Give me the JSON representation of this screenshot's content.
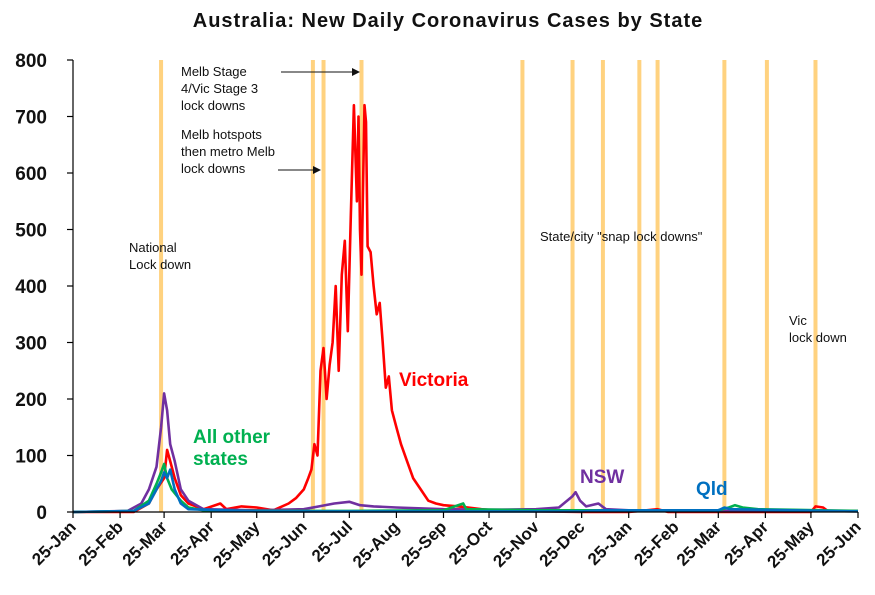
{
  "chart_data": {
    "type": "line",
    "title": "Australia: New Daily Coronavirus Cases by State",
    "x_tick_labels": [
      "25-Jan",
      "25-Feb",
      "25-Mar",
      "25-Apr",
      "25-May",
      "25-Jun",
      "25-Jul",
      "25-Aug",
      "25-Sep",
      "25-Oct",
      "25-Nov",
      "25-Dec",
      "25-Jan",
      "25-Feb",
      "25-Mar",
      "25-Apr",
      "25-May",
      "25-Jun"
    ],
    "x_tick_dates": [
      "2020-01-25",
      "2020-02-25",
      "2020-03-25",
      "2020-04-25",
      "2020-05-25",
      "2020-06-25",
      "2020-07-25",
      "2020-08-25",
      "2020-09-25",
      "2020-10-25",
      "2020-11-25",
      "2020-12-25",
      "2021-01-25",
      "2021-02-25",
      "2021-03-25",
      "2021-04-25",
      "2021-05-25",
      "2021-06-25"
    ],
    "xlim": [
      "2020-01-25",
      "2021-06-25"
    ],
    "ylim": [
      0,
      800
    ],
    "yticks": [
      0,
      100,
      200,
      300,
      400,
      500,
      600,
      700,
      800
    ],
    "grid": false,
    "lockdown_lines": {
      "color": "#FFD27F",
      "dates": [
        "2020-03-23",
        "2020-07-01",
        "2020-07-08",
        "2020-08-02",
        "2020-11-16",
        "2020-12-19",
        "2021-01-08",
        "2021-02-01",
        "2021-02-13",
        "2021-03-29",
        "2021-04-26",
        "2021-05-28"
      ]
    },
    "series": [
      {
        "name": "Victoria",
        "color": "#FF0000",
        "points": [
          [
            "2020-01-25",
            0
          ],
          [
            "2020-03-05",
            0
          ],
          [
            "2020-03-15",
            15
          ],
          [
            "2020-03-20",
            40
          ],
          [
            "2020-03-25",
            60
          ],
          [
            "2020-03-27",
            110
          ],
          [
            "2020-03-29",
            90
          ],
          [
            "2020-04-01",
            60
          ],
          [
            "2020-04-05",
            30
          ],
          [
            "2020-04-10",
            15
          ],
          [
            "2020-04-20",
            5
          ],
          [
            "2020-05-01",
            15
          ],
          [
            "2020-05-05",
            5
          ],
          [
            "2020-05-15",
            10
          ],
          [
            "2020-05-25",
            8
          ],
          [
            "2020-06-05",
            3
          ],
          [
            "2020-06-15",
            15
          ],
          [
            "2020-06-20",
            25
          ],
          [
            "2020-06-25",
            40
          ],
          [
            "2020-06-28",
            60
          ],
          [
            "2020-06-30",
            75
          ],
          [
            "2020-07-02",
            120
          ],
          [
            "2020-07-04",
            100
          ],
          [
            "2020-07-06",
            250
          ],
          [
            "2020-07-08",
            290
          ],
          [
            "2020-07-10",
            200
          ],
          [
            "2020-07-12",
            260
          ],
          [
            "2020-07-14",
            300
          ],
          [
            "2020-07-16",
            400
          ],
          [
            "2020-07-18",
            250
          ],
          [
            "2020-07-20",
            420
          ],
          [
            "2020-07-22",
            480
          ],
          [
            "2020-07-24",
            320
          ],
          [
            "2020-07-26",
            530
          ],
          [
            "2020-07-28",
            720
          ],
          [
            "2020-07-30",
            550
          ],
          [
            "2020-07-31",
            700
          ],
          [
            "2020-08-01",
            500
          ],
          [
            "2020-08-02",
            420
          ],
          [
            "2020-08-04",
            720
          ],
          [
            "2020-08-05",
            690
          ],
          [
            "2020-08-06",
            470
          ],
          [
            "2020-08-08",
            460
          ],
          [
            "2020-08-10",
            400
          ],
          [
            "2020-08-12",
            350
          ],
          [
            "2020-08-14",
            370
          ],
          [
            "2020-08-16",
            300
          ],
          [
            "2020-08-18",
            220
          ],
          [
            "2020-08-20",
            240
          ],
          [
            "2020-08-22",
            180
          ],
          [
            "2020-08-25",
            150
          ],
          [
            "2020-08-28",
            120
          ],
          [
            "2020-09-01",
            90
          ],
          [
            "2020-09-05",
            60
          ],
          [
            "2020-09-10",
            40
          ],
          [
            "2020-09-15",
            20
          ],
          [
            "2020-09-20",
            15
          ],
          [
            "2020-09-25",
            12
          ],
          [
            "2020-10-05",
            10
          ],
          [
            "2020-10-20",
            5
          ],
          [
            "2020-11-01",
            2
          ],
          [
            "2020-12-25",
            0
          ],
          [
            "2021-01-25",
            0
          ],
          [
            "2021-02-13",
            5
          ],
          [
            "2021-02-20",
            0
          ],
          [
            "2021-05-25",
            0
          ],
          [
            "2021-05-28",
            10
          ],
          [
            "2021-06-02",
            8
          ],
          [
            "2021-06-05",
            2
          ]
        ]
      },
      {
        "name": "NSW",
        "color": "#7030A0",
        "points": [
          [
            "2020-01-25",
            0
          ],
          [
            "2020-03-01",
            2
          ],
          [
            "2020-03-10",
            15
          ],
          [
            "2020-03-15",
            40
          ],
          [
            "2020-03-20",
            80
          ],
          [
            "2020-03-23",
            150
          ],
          [
            "2020-03-25",
            210
          ],
          [
            "2020-03-27",
            180
          ],
          [
            "2020-03-29",
            120
          ],
          [
            "2020-04-01",
            90
          ],
          [
            "2020-04-05",
            40
          ],
          [
            "2020-04-10",
            20
          ],
          [
            "2020-04-20",
            5
          ],
          [
            "2020-05-25",
            3
          ],
          [
            "2020-06-25",
            5
          ],
          [
            "2020-07-05",
            10
          ],
          [
            "2020-07-15",
            15
          ],
          [
            "2020-07-25",
            18
          ],
          [
            "2020-08-01",
            12
          ],
          [
            "2020-08-10",
            10
          ],
          [
            "2020-08-25",
            8
          ],
          [
            "2020-09-25",
            5
          ],
          [
            "2020-10-25",
            4
          ],
          [
            "2020-11-25",
            5
          ],
          [
            "2020-12-10",
            8
          ],
          [
            "2020-12-19",
            28
          ],
          [
            "2020-12-21",
            35
          ],
          [
            "2020-12-24",
            20
          ],
          [
            "2020-12-28",
            10
          ],
          [
            "2021-01-05",
            15
          ],
          [
            "2021-01-10",
            5
          ],
          [
            "2021-01-25",
            3
          ],
          [
            "2021-03-25",
            2
          ],
          [
            "2021-06-25",
            2
          ]
        ]
      },
      {
        "name": "All other states",
        "color": "#00B050",
        "points": [
          [
            "2020-01-25",
            0
          ],
          [
            "2020-03-05",
            2
          ],
          [
            "2020-03-15",
            20
          ],
          [
            "2020-03-20",
            50
          ],
          [
            "2020-03-23",
            70
          ],
          [
            "2020-03-25",
            85
          ],
          [
            "2020-03-27",
            60
          ],
          [
            "2020-03-30",
            40
          ],
          [
            "2020-04-05",
            20
          ],
          [
            "2020-04-10",
            8
          ],
          [
            "2020-04-20",
            3
          ],
          [
            "2020-05-25",
            2
          ],
          [
            "2020-07-25",
            2
          ],
          [
            "2020-09-25",
            3
          ],
          [
            "2020-10-08",
            15
          ],
          [
            "2020-10-10",
            5
          ],
          [
            "2020-11-25",
            3
          ],
          [
            "2021-03-25",
            3
          ],
          [
            "2021-04-01",
            8
          ],
          [
            "2021-04-05",
            12
          ],
          [
            "2021-04-10",
            8
          ],
          [
            "2021-04-20",
            5
          ],
          [
            "2021-06-25",
            2
          ]
        ]
      },
      {
        "name": "Qld",
        "color": "#0070C0",
        "points": [
          [
            "2020-01-25",
            0
          ],
          [
            "2020-03-05",
            2
          ],
          [
            "2020-03-15",
            15
          ],
          [
            "2020-03-20",
            40
          ],
          [
            "2020-03-23",
            55
          ],
          [
            "2020-03-25",
            70
          ],
          [
            "2020-03-27",
            60
          ],
          [
            "2020-03-29",
            75
          ],
          [
            "2020-04-01",
            40
          ],
          [
            "2020-04-05",
            15
          ],
          [
            "2020-04-10",
            5
          ],
          [
            "2020-05-25",
            1
          ],
          [
            "2020-12-25",
            1
          ],
          [
            "2021-01-08",
            3
          ],
          [
            "2021-03-25",
            3
          ],
          [
            "2021-03-29",
            8
          ],
          [
            "2021-04-02",
            5
          ],
          [
            "2021-06-25",
            1
          ]
        ]
      }
    ],
    "series_labels": [
      "Victoria",
      "All other\nstates",
      "NSW",
      "Qld"
    ],
    "annotations": [
      {
        "text": "National\nLock down"
      },
      {
        "text": "Melb Stage\n4/Vic Stage 3\nlock downs"
      },
      {
        "text": "Melb hotspots\nthen metro Melb\nlock downs"
      },
      {
        "text": "State/city \"snap lock downs\""
      },
      {
        "text": "Vic\nlock down"
      }
    ]
  }
}
